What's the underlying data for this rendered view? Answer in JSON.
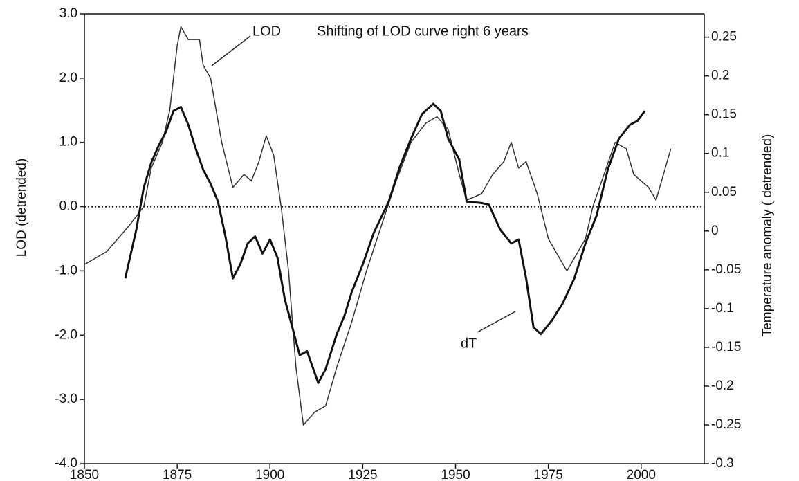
{
  "chart_data": {
    "type": "line",
    "annotations": [
      "LOD",
      "Shifting of LOD curve right  6 years",
      "dT"
    ],
    "y_label": "LOD (detrended)",
    "y2_label": "Temperature anomaly ( detrended)",
    "xlim": [
      1850,
      2017
    ],
    "xticks": [
      1850,
      1875,
      1900,
      1925,
      1950,
      1975,
      2000
    ],
    "ylim": [
      -4,
      3
    ],
    "yticks": [
      {
        "value": 3,
        "label": "3.0"
      },
      {
        "value": 2,
        "label": "2.0"
      },
      {
        "value": 1,
        "label": "1.0"
      },
      {
        "value": 0,
        "label": "0.0"
      },
      {
        "value": -1,
        "label": "-1.0"
      },
      {
        "value": -2,
        "label": "-2.0"
      },
      {
        "value": -3,
        "label": "-3.0"
      },
      {
        "value": -4,
        "label": "-4.0"
      }
    ],
    "y2lim": [
      -0.3,
      0.28
    ],
    "y2ticks": [
      0.25,
      0.2,
      0.15,
      0.1,
      0.05,
      0,
      -0.05,
      -0.1,
      -0.15,
      -0.2,
      -0.25,
      -0.3
    ],
    "reference_line": 0,
    "series": [
      {
        "name": "LOD",
        "color": "#333333",
        "x": [
          1850,
          1856,
          1862,
          1866,
          1868,
          1871,
          1873,
          1875,
          1876,
          1878,
          1881,
          1882,
          1884,
          1887,
          1890,
          1893,
          1895,
          1897,
          1899,
          1901,
          1903,
          1905,
          1907,
          1909,
          1912,
          1915,
          1918,
          1922,
          1926,
          1930,
          1934,
          1938,
          1942,
          1945,
          1948,
          1951,
          1953,
          1957,
          1960,
          1963,
          1965,
          1967,
          1969,
          1972,
          1975,
          1977,
          1980,
          1983,
          1985,
          1987,
          1990,
          1993,
          1996,
          1998,
          2002,
          2004,
          2006,
          2008
        ],
        "values": [
          -0.9,
          -0.7,
          -0.3,
          0,
          0.6,
          1.0,
          1.5,
          2.5,
          2.8,
          2.6,
          2.6,
          2.2,
          2.0,
          1.0,
          0.3,
          0.5,
          0.4,
          0.7,
          1.1,
          0.8,
          0,
          -1.0,
          -2.5,
          -3.4,
          -3.2,
          -3.1,
          -2.5,
          -1.8,
          -1.0,
          -0.3,
          0.4,
          1.0,
          1.3,
          1.4,
          1.2,
          0.5,
          0.1,
          0.2,
          0.5,
          0.7,
          1.0,
          0.6,
          0.7,
          0.2,
          -0.5,
          -0.7,
          -1.0,
          -0.7,
          -0.5,
          0,
          0.5,
          1.0,
          0.9,
          0.5,
          0.3,
          0.1,
          0.5,
          0.9
        ]
      },
      {
        "name": "dT",
        "color": "#111111",
        "axis": "y2",
        "x": [
          1861,
          1864,
          1866,
          1868,
          1870,
          1872,
          1874,
          1876,
          1878,
          1880,
          1882,
          1884,
          1886,
          1888,
          1890,
          1892,
          1894,
          1896,
          1898,
          1900,
          1902,
          1904,
          1906,
          1908,
          1910,
          1913,
          1915,
          1918,
          1920,
          1922,
          1925,
          1928,
          1932,
          1935,
          1938,
          1941,
          1944,
          1946,
          1948,
          1951,
          1953,
          1957,
          1959,
          1962,
          1965,
          1967,
          1969,
          1971,
          1973,
          1976,
          1979,
          1982,
          1985,
          1988,
          1991,
          1994,
          1997,
          1999,
          2001
        ],
        "values": [
          -0.061,
          0.002,
          0.056,
          0.088,
          0.11,
          0.128,
          0.155,
          0.16,
          0.137,
          0.106,
          0.079,
          0.061,
          0.038,
          -0.007,
          -0.061,
          -0.043,
          -0.016,
          -0.007,
          -0.029,
          -0.011,
          -0.034,
          -0.088,
          -0.124,
          -0.16,
          -0.155,
          -0.196,
          -0.178,
          -0.133,
          -0.11,
          -0.079,
          -0.043,
          -0.002,
          0.038,
          0.083,
          0.119,
          0.151,
          0.164,
          0.155,
          0.119,
          0.092,
          0.038,
          0.036,
          0.034,
          0.002,
          -0.016,
          -0.011,
          -0.061,
          -0.124,
          -0.133,
          -0.115,
          -0.092,
          -0.061,
          -0.016,
          0.02,
          0.079,
          0.119,
          0.137,
          0.142,
          0.155
        ]
      }
    ]
  }
}
